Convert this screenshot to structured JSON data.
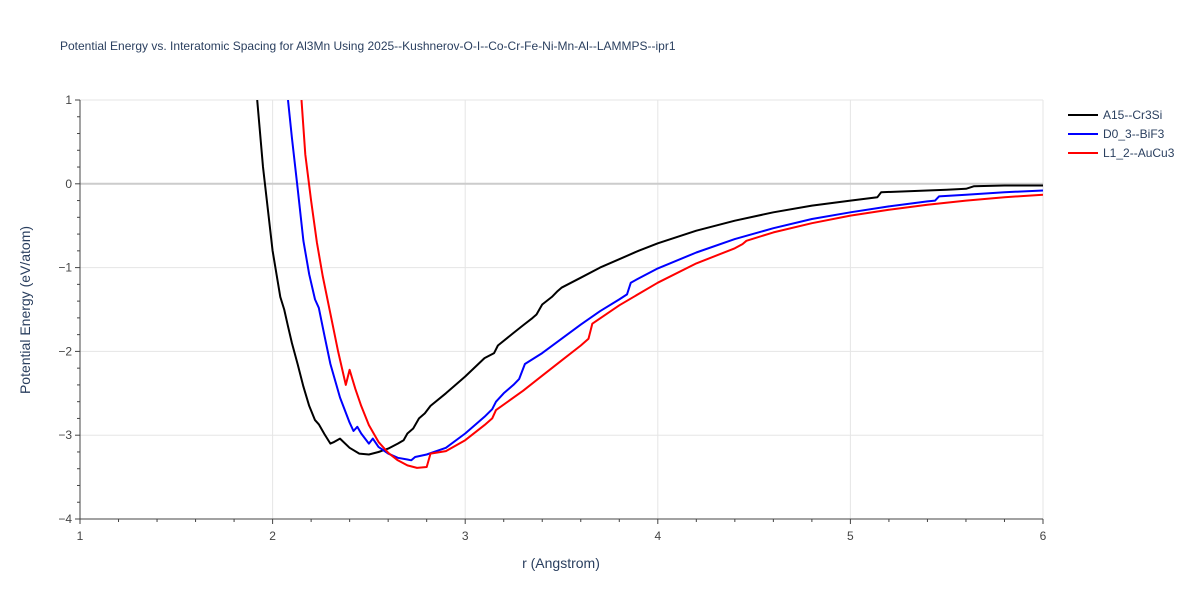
{
  "chart_data": {
    "type": "line",
    "title": "Potential Energy vs. Interatomic Spacing for Al3Mn Using 2025--Kushnerov-O-I--Co-Cr-Fe-Ni-Mn-Al--LAMMPS--ipr1",
    "xlabel": "r (Angstrom)",
    "ylabel": "Potential Energy (eV/atom)",
    "xlim": [
      1,
      6
    ],
    "ylim": [
      -4,
      1
    ],
    "xticks": [
      1,
      2,
      3,
      4,
      5,
      6
    ],
    "yticks": [
      -4,
      -3,
      -2,
      -1,
      0,
      1
    ],
    "xtick_labels": [
      "1",
      "2",
      "3",
      "4",
      "5",
      "6"
    ],
    "ytick_labels": [
      "−4",
      "−3",
      "−2",
      "−1",
      "0",
      "1"
    ],
    "grid": true,
    "legend_position": "top-right",
    "series": [
      {
        "name": "A15--Cr3Si",
        "color": "#000000",
        "x": [
          1.92,
          1.95,
          2.0,
          2.04,
          2.06,
          2.08,
          2.1,
          2.13,
          2.16,
          2.19,
          2.22,
          2.24,
          2.27,
          2.3,
          2.32,
          2.35,
          2.4,
          2.45,
          2.5,
          2.55,
          2.6,
          2.65,
          2.68,
          2.7,
          2.73,
          2.76,
          2.79,
          2.82,
          2.9,
          3.0,
          3.1,
          3.15,
          3.17,
          3.25,
          3.3,
          3.35,
          3.37,
          3.4,
          3.45,
          3.48,
          3.5,
          3.6,
          3.7,
          3.8,
          3.9,
          4.0,
          4.2,
          4.4,
          4.6,
          4.8,
          5.0,
          5.14,
          5.16,
          5.3,
          5.5,
          5.6,
          5.64,
          5.8,
          6.0
        ],
        "y": [
          1.0,
          0.2,
          -0.8,
          -1.35,
          -1.5,
          -1.7,
          -1.9,
          -2.15,
          -2.42,
          -2.65,
          -2.82,
          -2.87,
          -2.99,
          -3.1,
          -3.08,
          -3.04,
          -3.15,
          -3.22,
          -3.23,
          -3.2,
          -3.16,
          -3.1,
          -3.06,
          -2.98,
          -2.92,
          -2.8,
          -2.74,
          -2.65,
          -2.5,
          -2.3,
          -2.08,
          -2.02,
          -1.93,
          -1.78,
          -1.69,
          -1.6,
          -1.56,
          -1.44,
          -1.35,
          -1.28,
          -1.24,
          -1.12,
          -1.0,
          -0.9,
          -0.8,
          -0.71,
          -0.56,
          -0.44,
          -0.34,
          -0.26,
          -0.2,
          -0.16,
          -0.1,
          -0.09,
          -0.07,
          -0.06,
          -0.03,
          -0.02,
          -0.02
        ]
      },
      {
        "name": "D0_3--BiF3",
        "color": "#0000ff",
        "x": [
          2.08,
          2.1,
          2.13,
          2.16,
          2.19,
          2.22,
          2.24,
          2.27,
          2.3,
          2.35,
          2.4,
          2.42,
          2.44,
          2.46,
          2.5,
          2.52,
          2.55,
          2.6,
          2.65,
          2.7,
          2.72,
          2.74,
          2.8,
          2.9,
          3.0,
          3.1,
          3.14,
          3.16,
          3.2,
          3.25,
          3.28,
          3.31,
          3.4,
          3.5,
          3.6,
          3.7,
          3.8,
          3.84,
          3.86,
          3.9,
          4.0,
          4.2,
          4.4,
          4.6,
          4.8,
          5.0,
          5.2,
          5.4,
          5.44,
          5.46,
          5.6,
          5.8,
          6.0
        ],
        "y": [
          1.0,
          0.55,
          -0.05,
          -0.68,
          -1.08,
          -1.38,
          -1.48,
          -1.82,
          -2.15,
          -2.55,
          -2.85,
          -2.95,
          -2.9,
          -2.98,
          -3.1,
          -3.04,
          -3.14,
          -3.22,
          -3.27,
          -3.29,
          -3.3,
          -3.26,
          -3.23,
          -3.15,
          -2.98,
          -2.78,
          -2.69,
          -2.6,
          -2.5,
          -2.4,
          -2.33,
          -2.15,
          -2.02,
          -1.85,
          -1.68,
          -1.52,
          -1.38,
          -1.32,
          -1.18,
          -1.13,
          -1.01,
          -0.82,
          -0.66,
          -0.53,
          -0.42,
          -0.34,
          -0.27,
          -0.21,
          -0.2,
          -0.15,
          -0.13,
          -0.1,
          -0.08
        ]
      },
      {
        "name": "L1_2--AuCu3",
        "color": "#ff0000",
        "x": [
          2.15,
          2.17,
          2.2,
          2.23,
          2.26,
          2.3,
          2.34,
          2.38,
          2.4,
          2.43,
          2.46,
          2.5,
          2.55,
          2.6,
          2.65,
          2.7,
          2.75,
          2.8,
          2.82,
          2.9,
          3.0,
          3.1,
          3.14,
          3.16,
          3.3,
          3.4,
          3.5,
          3.6,
          3.64,
          3.66,
          3.8,
          4.0,
          4.2,
          4.4,
          4.44,
          4.46,
          4.6,
          4.8,
          5.0,
          5.2,
          5.4,
          5.6,
          5.8,
          6.0
        ],
        "y": [
          1.0,
          0.35,
          -0.2,
          -0.7,
          -1.1,
          -1.55,
          -2.0,
          -2.4,
          -2.22,
          -2.45,
          -2.65,
          -2.88,
          -3.08,
          -3.21,
          -3.3,
          -3.36,
          -3.39,
          -3.38,
          -3.22,
          -3.19,
          -3.06,
          -2.88,
          -2.8,
          -2.7,
          -2.47,
          -2.29,
          -2.11,
          -1.93,
          -1.85,
          -1.67,
          -1.45,
          -1.18,
          -0.95,
          -0.77,
          -0.72,
          -0.68,
          -0.58,
          -0.47,
          -0.38,
          -0.31,
          -0.25,
          -0.2,
          -0.16,
          -0.13
        ]
      }
    ]
  }
}
